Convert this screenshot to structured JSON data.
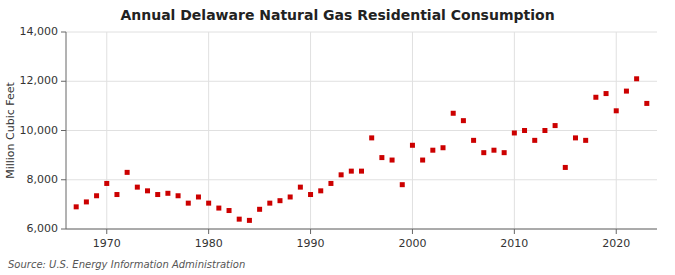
{
  "chart_data": {
    "type": "scatter",
    "title": "Annual Delaware Natural Gas Residential Consumption",
    "ylabel": "Million Cubic Feet",
    "source": "Source: U.S. Energy Information Administration",
    "color": "#cc0000",
    "marker": "square",
    "grid": true,
    "xlim": [
      1966,
      2024
    ],
    "xticks": [
      1970,
      1980,
      1990,
      2000,
      2010,
      2020
    ],
    "ylim": [
      6000,
      14000
    ],
    "yticks": [
      {
        "value": 6000,
        "label": "6,000"
      },
      {
        "value": 8000,
        "label": "8,000"
      },
      {
        "value": 10000,
        "label": "10,000"
      },
      {
        "value": 12000,
        "label": "12,000"
      },
      {
        "value": 14000,
        "label": "14,000"
      }
    ],
    "x": [
      1967,
      1968,
      1969,
      1970,
      1971,
      1972,
      1973,
      1974,
      1975,
      1976,
      1977,
      1978,
      1979,
      1980,
      1981,
      1982,
      1983,
      1984,
      1985,
      1986,
      1987,
      1988,
      1989,
      1990,
      1991,
      1992,
      1993,
      1994,
      1995,
      1996,
      1997,
      1998,
      1999,
      2000,
      2001,
      2002,
      2003,
      2004,
      2005,
      2006,
      2007,
      2008,
      2009,
      2010,
      2011,
      2012,
      2013,
      2014,
      2015,
      2016,
      2017,
      2018,
      2019,
      2020,
      2021,
      2022,
      2023
    ],
    "values": [
      6900,
      7100,
      7350,
      7850,
      7400,
      8300,
      7700,
      7550,
      7400,
      7450,
      7350,
      7050,
      7300,
      7050,
      6850,
      6750,
      6400,
      6350,
      6800,
      7050,
      7150,
      7300,
      7700,
      7400,
      7550,
      7850,
      8200,
      8350,
      8350,
      9700,
      8900,
      8800,
      7800,
      9400,
      8800,
      9200,
      9300,
      10700,
      10400,
      9600,
      9100,
      9200,
      9100,
      9900,
      10000,
      9600,
      10000,
      10200,
      8500,
      9700,
      9600,
      11350,
      11500,
      10800,
      11600,
      12100,
      11100
    ]
  }
}
